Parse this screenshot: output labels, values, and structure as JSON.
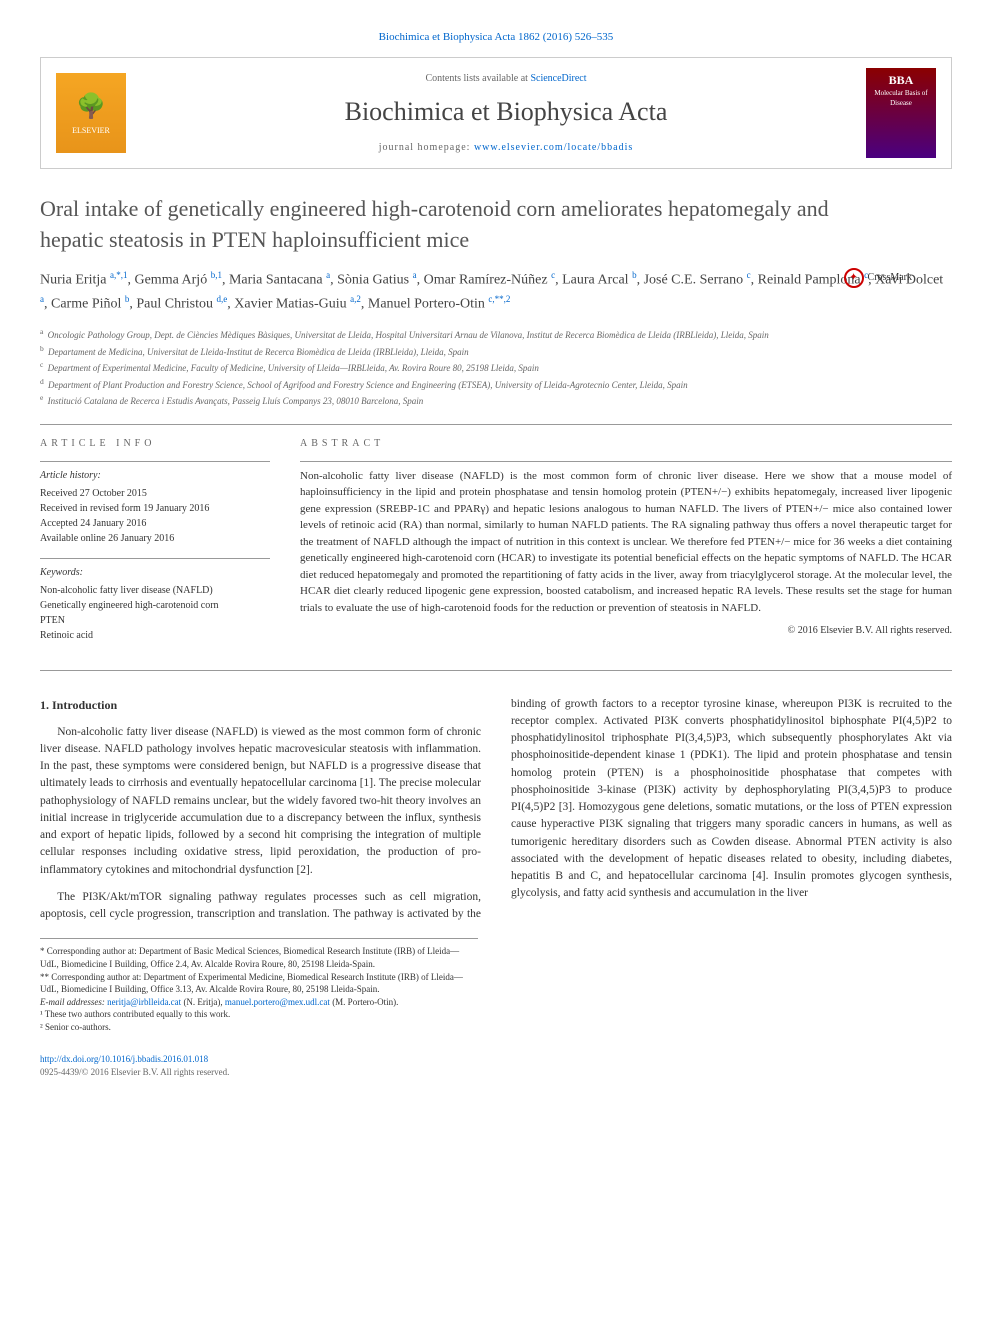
{
  "top_link": "Biochimica et Biophysica Acta 1862 (2016) 526–535",
  "header": {
    "contents": "Contents lists available at ",
    "contents_link": "ScienceDirect",
    "journal_title": "Biochimica et Biophysica Acta",
    "homepage_label": "journal homepage: ",
    "homepage_url": "www.elsevier.com/locate/bbadis",
    "elsevier": "ELSEVIER",
    "cover_bba": "BBA",
    "cover_sub": "Molecular Basis of Disease"
  },
  "article": {
    "title": "Oral intake of genetically engineered high-carotenoid corn ameliorates hepatomegaly and hepatic steatosis in PTEN haploinsufficient mice",
    "crossmark": "CrossMark",
    "authors_html": "Nuria Eritja <sup>a,*,1</sup>, Gemma Arjó <sup>b,1</sup>, Maria Santacana <sup>a</sup>, Sònia Gatius <sup>a</sup>, Omar Ramírez-Núñez <sup>c</sup>, Laura Arcal <sup>b</sup>, José C.E. Serrano <sup>c</sup>, Reinald Pamplona <sup>c</sup>, Xavi Dolcet <sup>a</sup>, Carme Piñol <sup>b</sup>, Paul Christou <sup>d,e</sup>, Xavier Matias-Guiu <sup>a,2</sup>, Manuel Portero-Otin <sup>c,**,2</sup>",
    "affiliations": [
      {
        "key": "a",
        "text": "Oncologic Pathology Group, Dept. de Ciències Mèdiques Bàsiques, Universitat de Lleida, Hospital Universitari Arnau de Vilanova, Institut de Recerca Biomèdica de Lleida (IRBLleida), Lleida, Spain"
      },
      {
        "key": "b",
        "text": "Departament de Medicina, Universitat de Lleida-Institut de Recerca Biomèdica de Lleida (IRBLleida), Lleida, Spain"
      },
      {
        "key": "c",
        "text": "Department of Experimental Medicine, Faculty of Medicine, University of Lleida—IRBLleida, Av. Rovira Roure 80, 25198 Lleida, Spain"
      },
      {
        "key": "d",
        "text": "Department of Plant Production and Forestry Science, School of Agrifood and Forestry Science and Engineering (ETSEA), University of Lleida-Agrotecnio Center, Lleida, Spain"
      },
      {
        "key": "e",
        "text": "Institució Catalana de Recerca i Estudis Avançats, Passeig Lluís Companys 23, 08010 Barcelona, Spain"
      }
    ]
  },
  "info": {
    "label": "ARTICLE INFO",
    "history_hdr": "Article history:",
    "history": [
      "Received 27 October 2015",
      "Received in revised form 19 January 2016",
      "Accepted 24 January 2016",
      "Available online 26 January 2016"
    ],
    "keywords_hdr": "Keywords:",
    "keywords": [
      "Non-alcoholic fatty liver disease (NAFLD)",
      "Genetically engineered high-carotenoid corn",
      "PTEN",
      "Retinoic acid"
    ]
  },
  "abstract": {
    "label": "ABSTRACT",
    "text": "Non-alcoholic fatty liver disease (NAFLD) is the most common form of chronic liver disease. Here we show that a mouse model of haploinsufficiency in the lipid and protein phosphatase and tensin homolog protein (PTEN+/−) exhibits hepatomegaly, increased liver lipogenic gene expression (SREBP-1C and PPARγ) and hepatic lesions analogous to human NAFLD. The livers of PTEN+/− mice also contained lower levels of retinoic acid (RA) than normal, similarly to human NAFLD patients. The RA signaling pathway thus offers a novel therapeutic target for the treatment of NAFLD although the impact of nutrition in this context is unclear. We therefore fed PTEN+/− mice for 36 weeks a diet containing genetically engineered high-carotenoid corn (HCAR) to investigate its potential beneficial effects on the hepatic symptoms of NAFLD. The HCAR diet reduced hepatomegaly and promoted the repartitioning of fatty acids in the liver, away from triacylglycerol storage. At the molecular level, the HCAR diet clearly reduced lipogenic gene expression, boosted catabolism, and increased hepatic RA levels. These results set the stage for human trials to evaluate the use of high-carotenoid foods for the reduction or prevention of steatosis in NAFLD.",
    "copyright": "© 2016 Elsevier B.V. All rights reserved."
  },
  "body": {
    "section_heading": "1. Introduction",
    "p1": "Non-alcoholic fatty liver disease (NAFLD) is viewed as the most common form of chronic liver disease. NAFLD pathology involves hepatic macrovesicular steatosis with inflammation. In the past, these symptoms were considered benign, but NAFLD is a progressive disease that ultimately leads to cirrhosis and eventually hepatocellular carcinoma [1]. The precise molecular pathophysiology of NAFLD remains unclear, but the widely favored two-hit theory involves an initial increase in triglyceride accumulation due to a discrepancy between the influx, synthesis and export of hepatic lipids, followed by a second hit comprising the integration of multiple cellular responses including oxidative stress, lipid peroxidation, the production of pro-inflammatory cytokines and mitochondrial dysfunction [2].",
    "p2": "The PI3K/Akt/mTOR signaling pathway regulates processes such as cell migration, apoptosis, cell cycle progression, transcription and translation. The pathway is activated by the binding of growth factors to a receptor tyrosine kinase, whereupon PI3K is recruited to the receptor complex. Activated PI3K converts phosphatidylinositol biphosphate PI(4,5)P2 to phosphatidylinositol triphosphate PI(3,4,5)P3, which subsequently phosphorylates Akt via phosphoinositide-dependent kinase 1 (PDK1). The lipid and protein phosphatase and tensin homolog protein (PTEN) is a phosphoinositide phosphatase that competes with phosphoinositide 3-kinase (PI3K) activity by dephosphorylating PI(3,4,5)P3 to produce PI(4,5)P2 [3]. Homozygous gene deletions, somatic mutations, or the loss of PTEN expression cause hyperactive PI3K signaling that triggers many sporadic cancers in humans, as well as tumorigenic hereditary disorders such as Cowden disease. Abnormal PTEN activity is also associated with the development of hepatic diseases related to obesity, including diabetes, hepatitis B and C, and hepatocellular carcinoma [4]. Insulin promotes glycogen synthesis, glycolysis, and fatty acid synthesis and accumulation in the liver"
  },
  "footnotes": {
    "corr1": "* Corresponding author at: Department of Basic Medical Sciences, Biomedical Research Institute (IRB) of Lleida—UdL, Biomedicine I Building, Office 2.4, Av. Alcalde Rovira Roure, 80, 25198 Lleida-Spain.",
    "corr2": "** Corresponding author at: Department of Experimental Medicine, Biomedical Research Institute (IRB) of Lleida—UdL, Biomedicine I Building, Office 3.13, Av. Alcalde Rovira Roure, 80, 25198 Lleida-Spain.",
    "emails_label": "E-mail addresses: ",
    "email1": "neritja@irblleida.cat",
    "email1_name": " (N. Eritja), ",
    "email2": "manuel.portero@mex.udl.cat",
    "email2_name": " (M. Portero-Otin).",
    "fn1": "¹ These two authors contributed equally to this work.",
    "fn2": "² Senior co-authors."
  },
  "footer": {
    "doi": "http://dx.doi.org/10.1016/j.bbadis.2016.01.018",
    "issn": "0925-4439/© 2016 Elsevier B.V. All rights reserved."
  },
  "colors": {
    "link": "#0066cc",
    "text": "#333333",
    "border": "#cccccc",
    "elsevier_orange": "#e8941a",
    "cover_grad_top": "#8b0000",
    "cover_grad_bot": "#4a0080"
  }
}
